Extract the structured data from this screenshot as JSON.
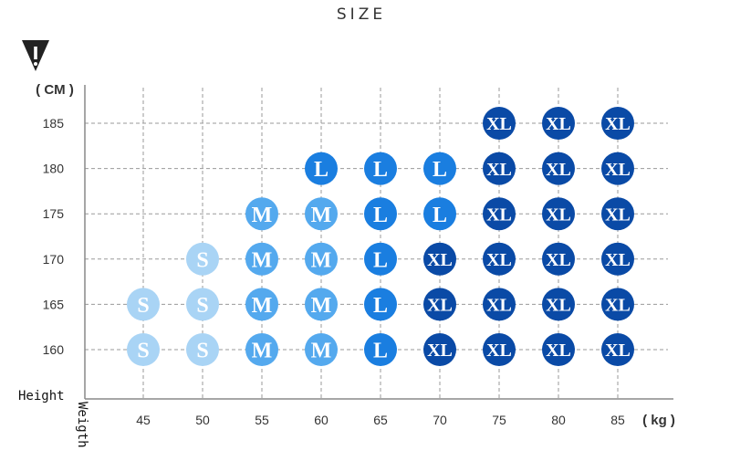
{
  "chart_data": {
    "type": "scatter",
    "title": "SIZE",
    "xlabel": "Weigth",
    "ylabel": "Height",
    "x_unit": "( kg )",
    "y_unit": "( CM )",
    "x_ticks": [
      45,
      50,
      55,
      60,
      65,
      70,
      75,
      80,
      85
    ],
    "y_ticks": [
      160,
      165,
      170,
      175,
      180,
      185
    ],
    "grid": true,
    "size_colors": {
      "S": "#a9d4f5",
      "M": "#54a9ee",
      "L": "#1a7ee0",
      "XL": "#0a4aa6"
    },
    "points": [
      {
        "x": 45,
        "y": 160,
        "size": "S"
      },
      {
        "x": 50,
        "y": 160,
        "size": "S"
      },
      {
        "x": 55,
        "y": 160,
        "size": "M"
      },
      {
        "x": 60,
        "y": 160,
        "size": "M"
      },
      {
        "x": 65,
        "y": 160,
        "size": "L"
      },
      {
        "x": 70,
        "y": 160,
        "size": "XL"
      },
      {
        "x": 75,
        "y": 160,
        "size": "XL"
      },
      {
        "x": 80,
        "y": 160,
        "size": "XL"
      },
      {
        "x": 85,
        "y": 160,
        "size": "XL"
      },
      {
        "x": 45,
        "y": 165,
        "size": "S"
      },
      {
        "x": 50,
        "y": 165,
        "size": "S"
      },
      {
        "x": 55,
        "y": 165,
        "size": "M"
      },
      {
        "x": 60,
        "y": 165,
        "size": "M"
      },
      {
        "x": 65,
        "y": 165,
        "size": "L"
      },
      {
        "x": 70,
        "y": 165,
        "size": "XL"
      },
      {
        "x": 75,
        "y": 165,
        "size": "XL"
      },
      {
        "x": 80,
        "y": 165,
        "size": "XL"
      },
      {
        "x": 85,
        "y": 165,
        "size": "XL"
      },
      {
        "x": 50,
        "y": 170,
        "size": "S"
      },
      {
        "x": 55,
        "y": 170,
        "size": "M"
      },
      {
        "x": 60,
        "y": 170,
        "size": "M"
      },
      {
        "x": 65,
        "y": 170,
        "size": "L"
      },
      {
        "x": 70,
        "y": 170,
        "size": "XL"
      },
      {
        "x": 75,
        "y": 170,
        "size": "XL"
      },
      {
        "x": 80,
        "y": 170,
        "size": "XL"
      },
      {
        "x": 85,
        "y": 170,
        "size": "XL"
      },
      {
        "x": 55,
        "y": 175,
        "size": "M"
      },
      {
        "x": 60,
        "y": 175,
        "size": "M"
      },
      {
        "x": 65,
        "y": 175,
        "size": "L"
      },
      {
        "x": 70,
        "y": 175,
        "size": "L"
      },
      {
        "x": 75,
        "y": 175,
        "size": "XL"
      },
      {
        "x": 80,
        "y": 175,
        "size": "XL"
      },
      {
        "x": 85,
        "y": 175,
        "size": "XL"
      },
      {
        "x": 60,
        "y": 180,
        "size": "L"
      },
      {
        "x": 65,
        "y": 180,
        "size": "L"
      },
      {
        "x": 70,
        "y": 180,
        "size": "L"
      },
      {
        "x": 75,
        "y": 180,
        "size": "XL"
      },
      {
        "x": 80,
        "y": 180,
        "size": "XL"
      },
      {
        "x": 85,
        "y": 180,
        "size": "XL"
      },
      {
        "x": 75,
        "y": 185,
        "size": "XL"
      },
      {
        "x": 80,
        "y": 185,
        "size": "XL"
      },
      {
        "x": 85,
        "y": 185,
        "size": "XL"
      }
    ]
  }
}
